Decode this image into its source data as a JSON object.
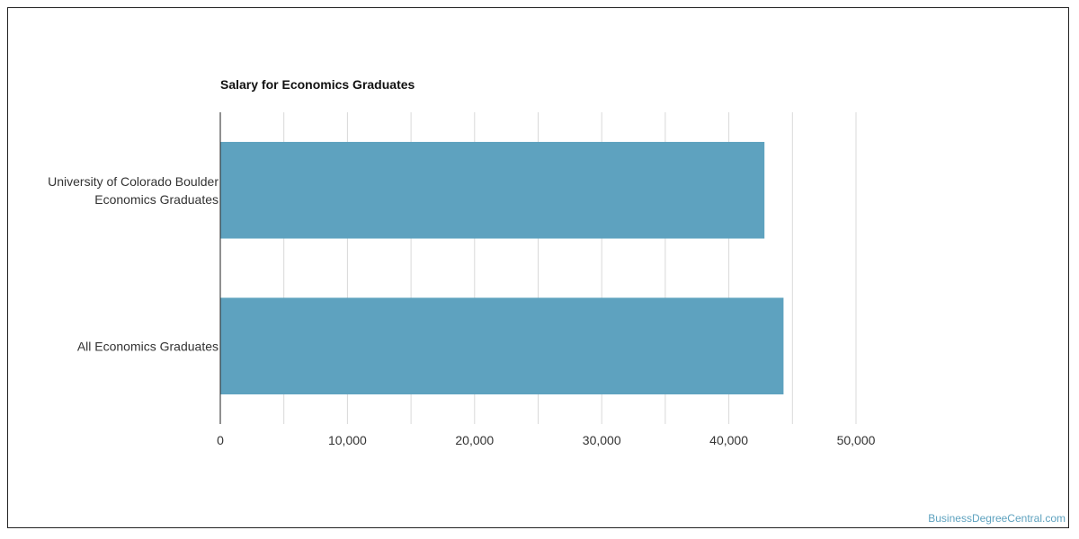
{
  "chart_data": {
    "type": "bar",
    "orientation": "horizontal",
    "title": "Salary for Economics Graduates",
    "categories": [
      [
        "University of Colorado Boulder",
        "Economics Graduates"
      ],
      [
        "All Economics Graduates"
      ]
    ],
    "values": [
      42800,
      44300
    ],
    "xlim": [
      0,
      50000
    ],
    "xticks": [
      0,
      10000,
      20000,
      30000,
      40000,
      50000
    ],
    "xtick_labels": [
      "0",
      "10,000",
      "20,000",
      "30,000",
      "40,000",
      "50,000"
    ],
    "minor_grid": true,
    "grid": true,
    "legend": "none",
    "bar_color": "#5ea2bf",
    "grid_color": "#d9d9d9"
  },
  "watermark": "BusinessDegreeCentral.com"
}
